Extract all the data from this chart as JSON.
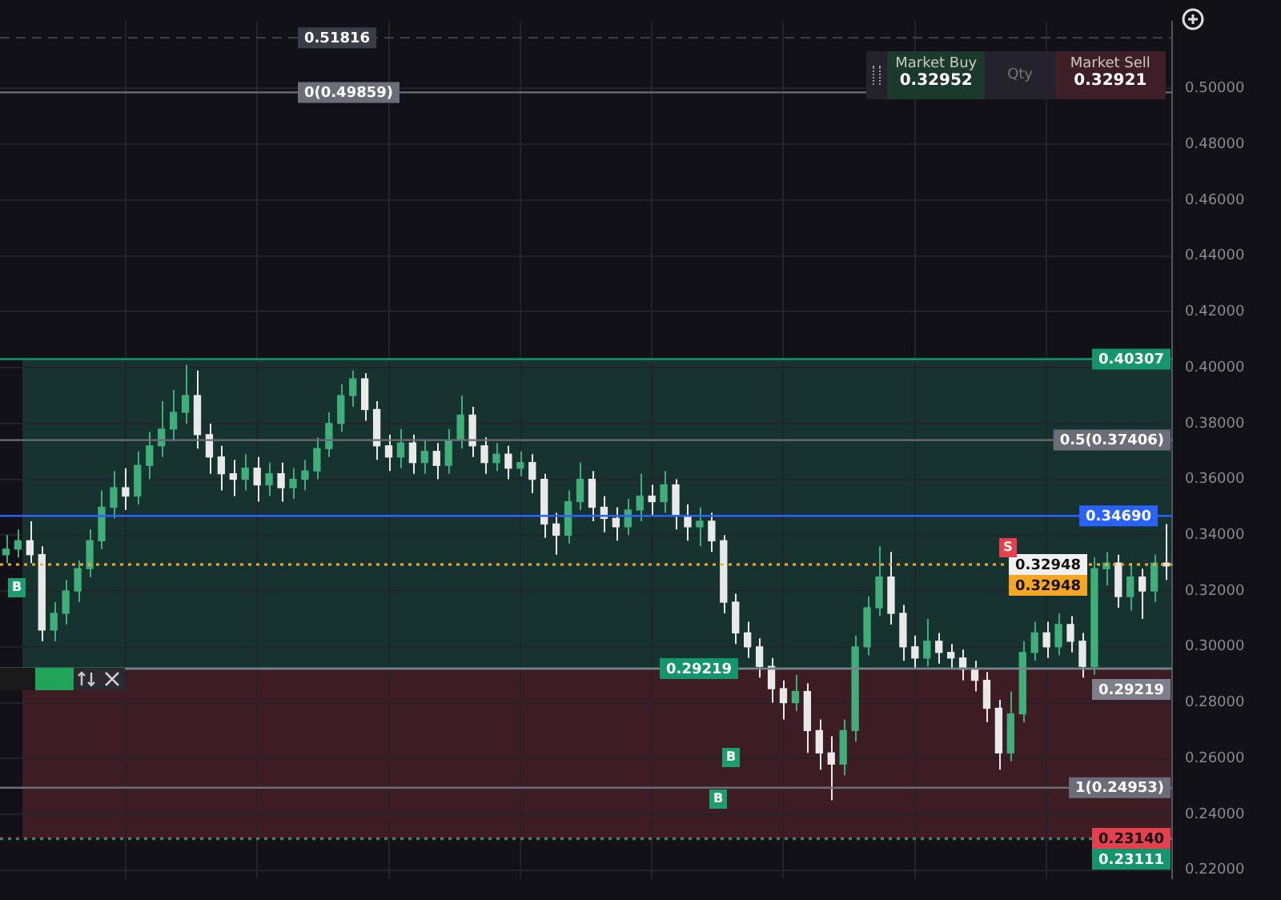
{
  "chart_data": {
    "type": "candlestick",
    "categories": [
      null,
      null,
      null,
      null,
      null,
      null,
      null,
      null,
      null,
      null,
      null,
      null,
      null,
      null,
      null,
      null,
      null,
      null,
      null,
      null,
      null,
      null,
      null,
      null,
      null,
      null,
      null,
      null,
      null,
      null,
      null,
      null,
      null,
      null,
      null,
      null,
      null,
      null,
      null,
      null,
      null,
      null,
      null,
      null,
      null,
      null,
      null,
      null,
      null,
      null,
      null,
      null,
      null,
      null,
      null,
      null,
      null,
      null,
      null,
      null,
      null,
      null,
      null,
      null,
      null,
      null,
      null,
      null,
      null,
      null,
      null,
      null,
      null,
      null,
      null,
      null,
      null,
      null,
      null,
      null,
      null,
      null,
      null,
      null,
      null,
      null,
      null,
      null,
      null,
      null,
      null,
      null,
      null,
      null,
      null,
      null,
      null,
      null
    ],
    "ohlc": [
      [
        0.333,
        0.34,
        0.33,
        0.335
      ],
      [
        0.335,
        0.342,
        0.332,
        0.338
      ],
      [
        0.338,
        0.345,
        0.33,
        0.333
      ],
      [
        0.333,
        0.336,
        0.302,
        0.306
      ],
      [
        0.306,
        0.316,
        0.302,
        0.312
      ],
      [
        0.312,
        0.324,
        0.308,
        0.32
      ],
      [
        0.32,
        0.331,
        0.316,
        0.328
      ],
      [
        0.328,
        0.342,
        0.325,
        0.338
      ],
      [
        0.338,
        0.356,
        0.335,
        0.35
      ],
      [
        0.35,
        0.363,
        0.346,
        0.357
      ],
      [
        0.357,
        0.364,
        0.349,
        0.354
      ],
      [
        0.354,
        0.37,
        0.351,
        0.365
      ],
      [
        0.365,
        0.377,
        0.36,
        0.372
      ],
      [
        0.372,
        0.388,
        0.368,
        0.378
      ],
      [
        0.378,
        0.392,
        0.374,
        0.384
      ],
      [
        0.384,
        0.401,
        0.38,
        0.39
      ],
      [
        0.39,
        0.399,
        0.371,
        0.376
      ],
      [
        0.376,
        0.38,
        0.362,
        0.368
      ],
      [
        0.368,
        0.372,
        0.356,
        0.362
      ],
      [
        0.362,
        0.367,
        0.354,
        0.36
      ],
      [
        0.36,
        0.369,
        0.356,
        0.364
      ],
      [
        0.364,
        0.368,
        0.352,
        0.358
      ],
      [
        0.358,
        0.366,
        0.354,
        0.362
      ],
      [
        0.362,
        0.366,
        0.352,
        0.357
      ],
      [
        0.357,
        0.364,
        0.353,
        0.36
      ],
      [
        0.36,
        0.367,
        0.356,
        0.363
      ],
      [
        0.363,
        0.375,
        0.36,
        0.371
      ],
      [
        0.371,
        0.384,
        0.368,
        0.38
      ],
      [
        0.38,
        0.394,
        0.377,
        0.39
      ],
      [
        0.39,
        0.399,
        0.386,
        0.396
      ],
      [
        0.396,
        0.398,
        0.381,
        0.385
      ],
      [
        0.385,
        0.388,
        0.367,
        0.372
      ],
      [
        0.372,
        0.376,
        0.363,
        0.368
      ],
      [
        0.368,
        0.378,
        0.364,
        0.373
      ],
      [
        0.373,
        0.376,
        0.362,
        0.366
      ],
      [
        0.366,
        0.374,
        0.362,
        0.37
      ],
      [
        0.37,
        0.373,
        0.36,
        0.365
      ],
      [
        0.365,
        0.378,
        0.362,
        0.374
      ],
      [
        0.374,
        0.39,
        0.371,
        0.383
      ],
      [
        0.383,
        0.386,
        0.368,
        0.372
      ],
      [
        0.372,
        0.375,
        0.362,
        0.366
      ],
      [
        0.366,
        0.373,
        0.363,
        0.369
      ],
      [
        0.369,
        0.372,
        0.36,
        0.364
      ],
      [
        0.364,
        0.37,
        0.361,
        0.366
      ],
      [
        0.366,
        0.369,
        0.355,
        0.36
      ],
      [
        0.36,
        0.362,
        0.339,
        0.344
      ],
      [
        0.344,
        0.348,
        0.333,
        0.34
      ],
      [
        0.34,
        0.356,
        0.337,
        0.352
      ],
      [
        0.352,
        0.366,
        0.349,
        0.36
      ],
      [
        0.36,
        0.363,
        0.345,
        0.35
      ],
      [
        0.35,
        0.354,
        0.341,
        0.346
      ],
      [
        0.346,
        0.35,
        0.338,
        0.343
      ],
      [
        0.343,
        0.353,
        0.34,
        0.349
      ],
      [
        0.349,
        0.362,
        0.345,
        0.354
      ],
      [
        0.354,
        0.358,
        0.347,
        0.352
      ],
      [
        0.352,
        0.363,
        0.348,
        0.358
      ],
      [
        0.358,
        0.36,
        0.342,
        0.347
      ],
      [
        0.347,
        0.351,
        0.338,
        0.343
      ],
      [
        0.343,
        0.35,
        0.336,
        0.345
      ],
      [
        0.345,
        0.348,
        0.334,
        0.338
      ],
      [
        0.338,
        0.34,
        0.312,
        0.316
      ],
      [
        0.316,
        0.319,
        0.301,
        0.305
      ],
      [
        0.305,
        0.309,
        0.296,
        0.3
      ],
      [
        0.3,
        0.303,
        0.289,
        0.293
      ],
      [
        0.293,
        0.296,
        0.28,
        0.285
      ],
      [
        0.285,
        0.288,
        0.274,
        0.28
      ],
      [
        0.28,
        0.29,
        0.277,
        0.284
      ],
      [
        0.284,
        0.287,
        0.262,
        0.27
      ],
      [
        0.27,
        0.274,
        0.256,
        0.262
      ],
      [
        0.262,
        0.268,
        0.245,
        0.258
      ],
      [
        0.258,
        0.274,
        0.254,
        0.27
      ],
      [
        0.27,
        0.304,
        0.266,
        0.3
      ],
      [
        0.3,
        0.318,
        0.297,
        0.314
      ],
      [
        0.314,
        0.336,
        0.311,
        0.325
      ],
      [
        0.325,
        0.334,
        0.308,
        0.312
      ],
      [
        0.312,
        0.315,
        0.295,
        0.3
      ],
      [
        0.3,
        0.304,
        0.292,
        0.296
      ],
      [
        0.296,
        0.31,
        0.293,
        0.302
      ],
      [
        0.302,
        0.305,
        0.294,
        0.298
      ],
      [
        0.298,
        0.301,
        0.292,
        0.296
      ],
      [
        0.296,
        0.299,
        0.288,
        0.292
      ],
      [
        0.292,
        0.295,
        0.284,
        0.288
      ],
      [
        0.288,
        0.291,
        0.273,
        0.278
      ],
      [
        0.278,
        0.281,
        0.256,
        0.262
      ],
      [
        0.262,
        0.284,
        0.259,
        0.276
      ],
      [
        0.276,
        0.302,
        0.273,
        0.298
      ],
      [
        0.298,
        0.309,
        0.295,
        0.305
      ],
      [
        0.305,
        0.309,
        0.296,
        0.3
      ],
      [
        0.3,
        0.312,
        0.297,
        0.308
      ],
      [
        0.308,
        0.311,
        0.298,
        0.302
      ],
      [
        0.302,
        0.305,
        0.289,
        0.293
      ],
      [
        0.293,
        0.332,
        0.29,
        0.328
      ],
      [
        0.328,
        0.334,
        0.322,
        0.33
      ],
      [
        0.33,
        0.333,
        0.314,
        0.318
      ],
      [
        0.318,
        0.33,
        0.313,
        0.325
      ],
      [
        0.325,
        0.328,
        0.31,
        0.32
      ],
      [
        0.32,
        0.333,
        0.316,
        0.33
      ],
      [
        0.33,
        0.344,
        0.324,
        0.329
      ]
    ],
    "ylim": [
      0.217,
      0.524
    ],
    "yticks": [
      {
        "value": 0.22,
        "label": "0.22000"
      },
      {
        "value": 0.24,
        "label": "0.24000"
      },
      {
        "value": 0.26,
        "label": "0.26000"
      },
      {
        "value": 0.28,
        "label": "0.28000"
      },
      {
        "value": 0.3,
        "label": "0.30000"
      },
      {
        "value": 0.32,
        "label": "0.32000"
      },
      {
        "value": 0.34,
        "label": "0.34000"
      },
      {
        "value": 0.36,
        "label": "0.36000"
      },
      {
        "value": 0.38,
        "label": "0.38000"
      },
      {
        "value": 0.4,
        "label": "0.40000"
      },
      {
        "value": 0.42,
        "label": "0.42000"
      },
      {
        "value": 0.44,
        "label": "0.44000"
      },
      {
        "value": 0.46,
        "label": "0.46000"
      },
      {
        "value": 0.48,
        "label": "0.48000"
      },
      {
        "value": 0.5,
        "label": "0.50000"
      }
    ],
    "tick_labels": "y",
    "grid": true,
    "bands": [
      {
        "axis": "y",
        "from": 0.29219,
        "to": 0.40307,
        "color": "#17332f"
      },
      {
        "axis": "y",
        "from": 0.2314,
        "to": 0.29219,
        "color": "#3d1c24"
      }
    ],
    "ref_lines": [
      {
        "axis": "y",
        "value": 0.51816,
        "label": "0.51816",
        "color": "#3a3d48",
        "line_style": "dashed"
      },
      {
        "axis": "y",
        "value": 0.49859,
        "label": "0(0.49859)",
        "color": "#6b6e78",
        "line_style": "solid"
      },
      {
        "axis": "y",
        "value": 0.40307,
        "label": "0.40307",
        "color": "#15966a",
        "line_style": "solid"
      },
      {
        "axis": "y",
        "value": 0.37406,
        "label": "0.5(0.37406)",
        "color": "#6b6e78",
        "line_style": "solid"
      },
      {
        "axis": "y",
        "value": 0.3469,
        "label": "0.34690",
        "color": "#2962ff",
        "line_style": "solid"
      },
      {
        "axis": "y",
        "value": 0.32948,
        "label": "0.32948",
        "color": "#f0f0f0",
        "line_style": "dotted"
      },
      {
        "axis": "y",
        "value": 0.32948,
        "label": "0.32948",
        "color": "#f5a623",
        "line_style": "dotted"
      },
      {
        "axis": "y",
        "value": 0.29219,
        "label": "0.29219",
        "color": "#15966a",
        "line_style": "solid"
      },
      {
        "axis": "y",
        "value": 0.29219,
        "label": "0.29219",
        "color": "#7d808a",
        "line_style": "solid"
      },
      {
        "axis": "y",
        "value": 0.24953,
        "label": "1(0.24953)",
        "color": "#6b6e78",
        "line_style": "solid"
      },
      {
        "axis": "y",
        "value": 0.2314,
        "label": "0.23140",
        "color": "#e5404f",
        "line_style": "dotted"
      },
      {
        "axis": "y",
        "value": 0.23111,
        "label": "0.23111",
        "color": "#15966a",
        "line_style": "dotted"
      }
    ],
    "annotations": [
      "Market Buy",
      "0.32952",
      "Qty",
      "Market Sell",
      "0.32921",
      "B",
      "B",
      "B",
      "S"
    ]
  }
}
